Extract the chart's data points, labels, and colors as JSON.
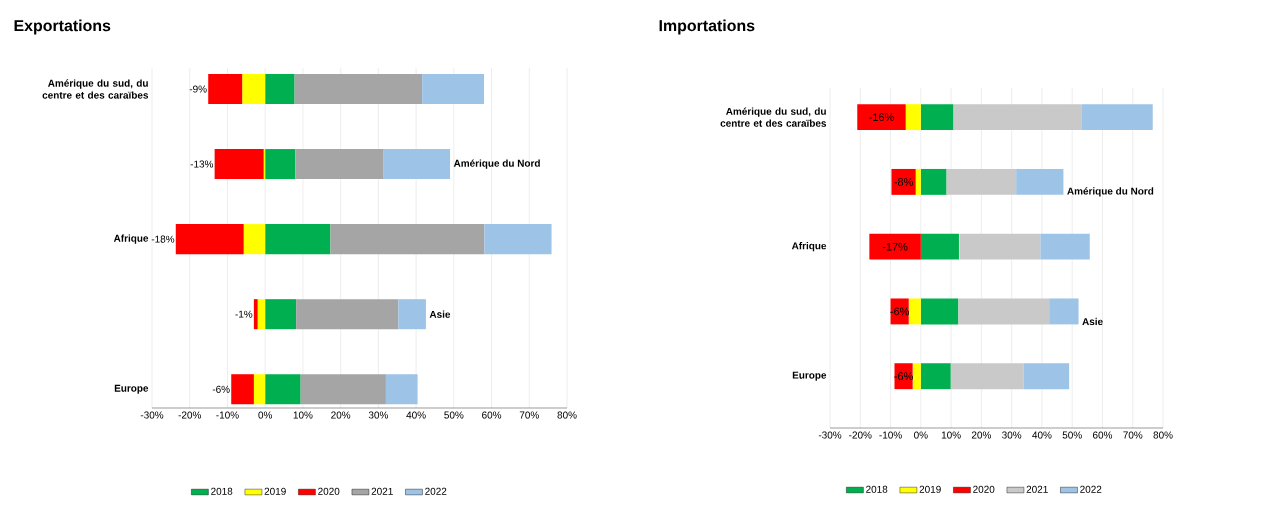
{
  "chart_data": [
    {
      "type": "bar",
      "orientation": "horizontal",
      "stacked": true,
      "title": "Exportations",
      "categories": [
        "Amérique du sud, du centre et des caraïbes",
        "Amérique du Nord",
        "Afrique",
        "Asie",
        "Europe"
      ],
      "series": [
        {
          "name": "2018",
          "color": "#00b050",
          "values": [
            7.8,
            8.0,
            17.3,
            8.2,
            9.4
          ]
        },
        {
          "name": "2019",
          "color": "#ffff00",
          "values": [
            -6.1,
            -0.4,
            -5.7,
            -2.0,
            -3.0
          ]
        },
        {
          "name": "2020",
          "color": "#ff0000",
          "values": [
            -9,
            -13,
            -18,
            -1,
            -6
          ],
          "value_labels": [
            "-9%",
            "-13%",
            "-18%",
            "-1%",
            "-6%"
          ]
        },
        {
          "name": "2021",
          "color": "#a5a5a5",
          "values": [
            33.8,
            23.4,
            40.8,
            27.1,
            22.6
          ]
        },
        {
          "name": "2022",
          "color": "#9dc3e6",
          "values": [
            16.4,
            17.6,
            17.8,
            7.3,
            8.4
          ]
        }
      ],
      "xlim": [
        -30,
        80
      ],
      "xticks": [
        {
          "value": -30,
          "label": "-30%"
        },
        {
          "value": -20,
          "label": "-20%"
        },
        {
          "value": -10,
          "label": "-10%"
        },
        {
          "value": 0,
          "label": "0%"
        },
        {
          "value": 10,
          "label": "10%"
        },
        {
          "value": 20,
          "label": "20%"
        },
        {
          "value": 30,
          "label": "30%"
        },
        {
          "value": 40,
          "label": "40%"
        },
        {
          "value": 50,
          "label": "50%"
        },
        {
          "value": 60,
          "label": "60%"
        },
        {
          "value": 70,
          "label": "70%"
        },
        {
          "value": 80,
          "label": "80%"
        }
      ],
      "grid": "x",
      "legend": "bottom"
    },
    {
      "type": "bar",
      "orientation": "horizontal",
      "stacked": true,
      "title": "Importations",
      "categories": [
        "Amérique du sud, du centre et des caraïbes",
        "Amérique du Nord",
        "Afrique",
        "Asie",
        "Europe"
      ],
      "series": [
        {
          "name": "2018",
          "color": "#00b050",
          "values": [
            10.8,
            8.5,
            12.6,
            12.4,
            9.9
          ]
        },
        {
          "name": "2019",
          "color": "#ffff00",
          "values": [
            -5.0,
            -1.7,
            0.3,
            -4.0,
            -2.7
          ]
        },
        {
          "name": "2020",
          "color": "#ff0000",
          "values": [
            -16,
            -8,
            -17,
            -6,
            -6
          ],
          "value_labels": [
            "-16%",
            "-8%",
            "-17%",
            "-6%",
            "-6%"
          ]
        },
        {
          "name": "2021",
          "color": "#c9c9c9",
          "values": [
            42.4,
            23.0,
            26.6,
            30.0,
            24.0
          ]
        },
        {
          "name": "2022",
          "color": "#9dc3e6",
          "values": [
            23.4,
            15.6,
            16.3,
            9.7,
            15.1
          ]
        }
      ],
      "xlim": [
        -30,
        80
      ],
      "xticks": [
        {
          "value": -30,
          "label": "-30%"
        },
        {
          "value": -20,
          "label": "-20%"
        },
        {
          "value": -10,
          "label": "-10%"
        },
        {
          "value": 0,
          "label": "0%"
        },
        {
          "value": 10,
          "label": "10%"
        },
        {
          "value": 20,
          "label": "20%"
        },
        {
          "value": 30,
          "label": "30%"
        },
        {
          "value": 40,
          "label": "40%"
        },
        {
          "value": 50,
          "label": "50%"
        },
        {
          "value": 60,
          "label": "60%"
        },
        {
          "value": 70,
          "label": "70%"
        },
        {
          "value": 80,
          "label": "80%"
        }
      ],
      "grid": "x",
      "legend": "bottom"
    }
  ]
}
